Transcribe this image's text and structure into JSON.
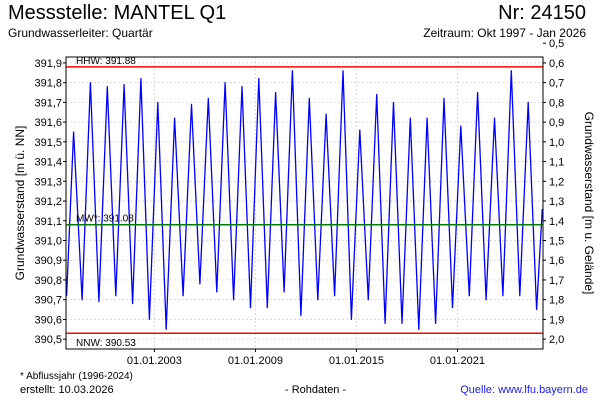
{
  "header": {
    "title": "Messstelle: MANTEL Q1",
    "number": "Nr: 24150",
    "aquifer": "Grundwasserleiter: Quartär",
    "period": "Zeitraum: Okt 1997 - Jan 2026"
  },
  "footer": {
    "footnote": "* Abflussjahr (1996-2024)",
    "created": "erstellt:  10.03.2026",
    "raw": "- Rohdaten -",
    "source": "Quelle: www.lfu.bayern.de"
  },
  "chart_data": {
    "type": "line",
    "ylabel": "Grundwasserstand [m ü. NN]",
    "ylabel_right": "Grundwasserstand [m u. Gelände]",
    "ylim": [
      390.45,
      391.93
    ],
    "yticks": [
      "391,9",
      "391,8",
      "391,7",
      "391,6",
      "391,5",
      "391,4",
      "391,3",
      "391,2",
      "391,1",
      "391,0",
      "390,9",
      "390,8",
      "390,7",
      "390,6",
      "390,5"
    ],
    "ytick_values": [
      391.9,
      391.8,
      391.7,
      391.6,
      391.5,
      391.4,
      391.3,
      391.2,
      391.1,
      391.0,
      390.9,
      390.8,
      390.7,
      390.6,
      390.5
    ],
    "yticks_right": [
      "0,5",
      "0,6",
      "0,7",
      "0,8",
      "0,9",
      "1,0",
      "1,1",
      "1,2",
      "1,3",
      "1,4",
      "1,5",
      "1,6",
      "1,7",
      "1,8",
      "1,9",
      "2,0"
    ],
    "yticks_right_values": [
      0.5,
      0.6,
      0.7,
      0.8,
      0.9,
      1.0,
      1.1,
      1.2,
      1.3,
      1.4,
      1.5,
      1.6,
      1.7,
      1.8,
      1.9,
      2.0
    ],
    "ground_level": 392.5,
    "xlim": [
      "1997-10-01",
      "2026-01-31"
    ],
    "xticks": [
      {
        "date": "2003-01-01",
        "label": "01.01.2003"
      },
      {
        "date": "2009-01-01",
        "label": "01.01.2009"
      },
      {
        "date": "2015-01-01",
        "label": "01.01.2015"
      },
      {
        "date": "2021-01-01",
        "label": "01.01.2021"
      }
    ],
    "reference_lines": [
      {
        "label": "HHW: 391.88",
        "value": 391.88,
        "color": "#ff0000"
      },
      {
        "label": "MW*: 391.08",
        "value": 391.08,
        "color": "#008000"
      },
      {
        "label": "NNW: 390.53",
        "value": 390.53,
        "color": "#ff0000"
      }
    ],
    "grid": true,
    "series": [
      {
        "color": "#0000ff",
        "x": [
          "1997-10",
          "1998-03",
          "1998-09",
          "1999-03",
          "1999-09",
          "2000-03",
          "2000-09",
          "2001-03",
          "2001-09",
          "2002-03",
          "2002-09",
          "2003-03",
          "2003-09",
          "2004-03",
          "2004-09",
          "2005-03",
          "2005-09",
          "2006-03",
          "2006-09",
          "2007-03",
          "2007-09",
          "2008-03",
          "2008-09",
          "2009-03",
          "2009-09",
          "2010-03",
          "2010-09",
          "2011-03",
          "2011-09",
          "2012-03",
          "2012-09",
          "2013-03",
          "2013-09",
          "2014-03",
          "2014-09",
          "2015-03",
          "2015-09",
          "2016-03",
          "2016-09",
          "2017-03",
          "2017-09",
          "2018-03",
          "2018-09",
          "2019-03",
          "2019-09",
          "2020-03",
          "2020-09",
          "2021-03",
          "2021-09",
          "2022-03",
          "2022-09",
          "2023-03",
          "2023-09",
          "2024-03",
          "2024-09",
          "2025-03",
          "2025-09",
          "2026-01"
        ],
        "y": [
          390.72,
          391.55,
          390.7,
          391.8,
          390.69,
          391.78,
          390.72,
          391.79,
          390.68,
          391.82,
          390.6,
          391.7,
          390.55,
          391.62,
          390.72,
          391.69,
          390.78,
          391.72,
          390.74,
          391.8,
          390.7,
          391.78,
          390.66,
          391.82,
          390.66,
          391.75,
          390.74,
          391.86,
          390.62,
          391.72,
          390.7,
          391.64,
          390.72,
          391.86,
          390.6,
          391.56,
          390.7,
          391.74,
          390.58,
          391.7,
          390.58,
          391.62,
          390.55,
          391.62,
          390.58,
          391.72,
          390.66,
          391.58,
          390.72,
          391.75,
          390.7,
          391.62,
          390.72,
          391.86,
          390.72,
          391.7,
          390.65,
          391.16
        ]
      }
    ]
  }
}
